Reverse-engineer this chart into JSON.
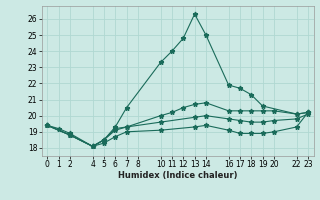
{
  "xlabel": "Humidex (Indice chaleur)",
  "bg_color": "#cce9e4",
  "grid_color": "#b0d8d2",
  "line_color": "#1a6b5a",
  "xlim": [
    -0.5,
    23.5
  ],
  "ylim": [
    17.5,
    26.8
  ],
  "xticks": [
    0,
    1,
    2,
    4,
    5,
    6,
    7,
    8,
    10,
    11,
    12,
    13,
    14,
    16,
    17,
    18,
    19,
    20,
    22,
    23
  ],
  "yticks": [
    18,
    19,
    20,
    21,
    22,
    23,
    24,
    25,
    26
  ],
  "lines": [
    {
      "x": [
        0,
        1,
        2,
        4,
        5,
        6,
        7,
        10,
        11,
        12,
        13,
        14,
        16,
        17,
        18,
        19,
        22,
        23
      ],
      "y": [
        19.4,
        19.2,
        18.9,
        18.1,
        18.5,
        19.3,
        20.5,
        23.3,
        24.0,
        24.8,
        26.3,
        25.0,
        21.9,
        21.7,
        21.3,
        20.6,
        20.1,
        20.2
      ]
    },
    {
      "x": [
        0,
        2,
        4,
        5,
        6,
        7,
        10,
        11,
        12,
        13,
        14,
        16,
        17,
        18,
        19,
        20,
        22,
        23
      ],
      "y": [
        19.4,
        18.8,
        18.1,
        18.5,
        19.2,
        19.3,
        20.0,
        20.2,
        20.5,
        20.7,
        20.8,
        20.3,
        20.3,
        20.3,
        20.3,
        20.3,
        20.1,
        20.2
      ]
    },
    {
      "x": [
        0,
        2,
        4,
        5,
        6,
        7,
        10,
        13,
        14,
        16,
        17,
        18,
        19,
        20,
        22,
        23
      ],
      "y": [
        19.4,
        18.8,
        18.1,
        18.5,
        19.1,
        19.3,
        19.6,
        19.9,
        20.0,
        19.8,
        19.7,
        19.6,
        19.6,
        19.7,
        19.8,
        20.1
      ]
    },
    {
      "x": [
        0,
        2,
        4,
        5,
        6,
        7,
        10,
        13,
        14,
        16,
        17,
        18,
        19,
        20,
        22,
        23
      ],
      "y": [
        19.4,
        18.8,
        18.1,
        18.3,
        18.7,
        19.0,
        19.1,
        19.3,
        19.4,
        19.1,
        18.9,
        18.9,
        18.9,
        19.0,
        19.3,
        20.2
      ]
    }
  ]
}
